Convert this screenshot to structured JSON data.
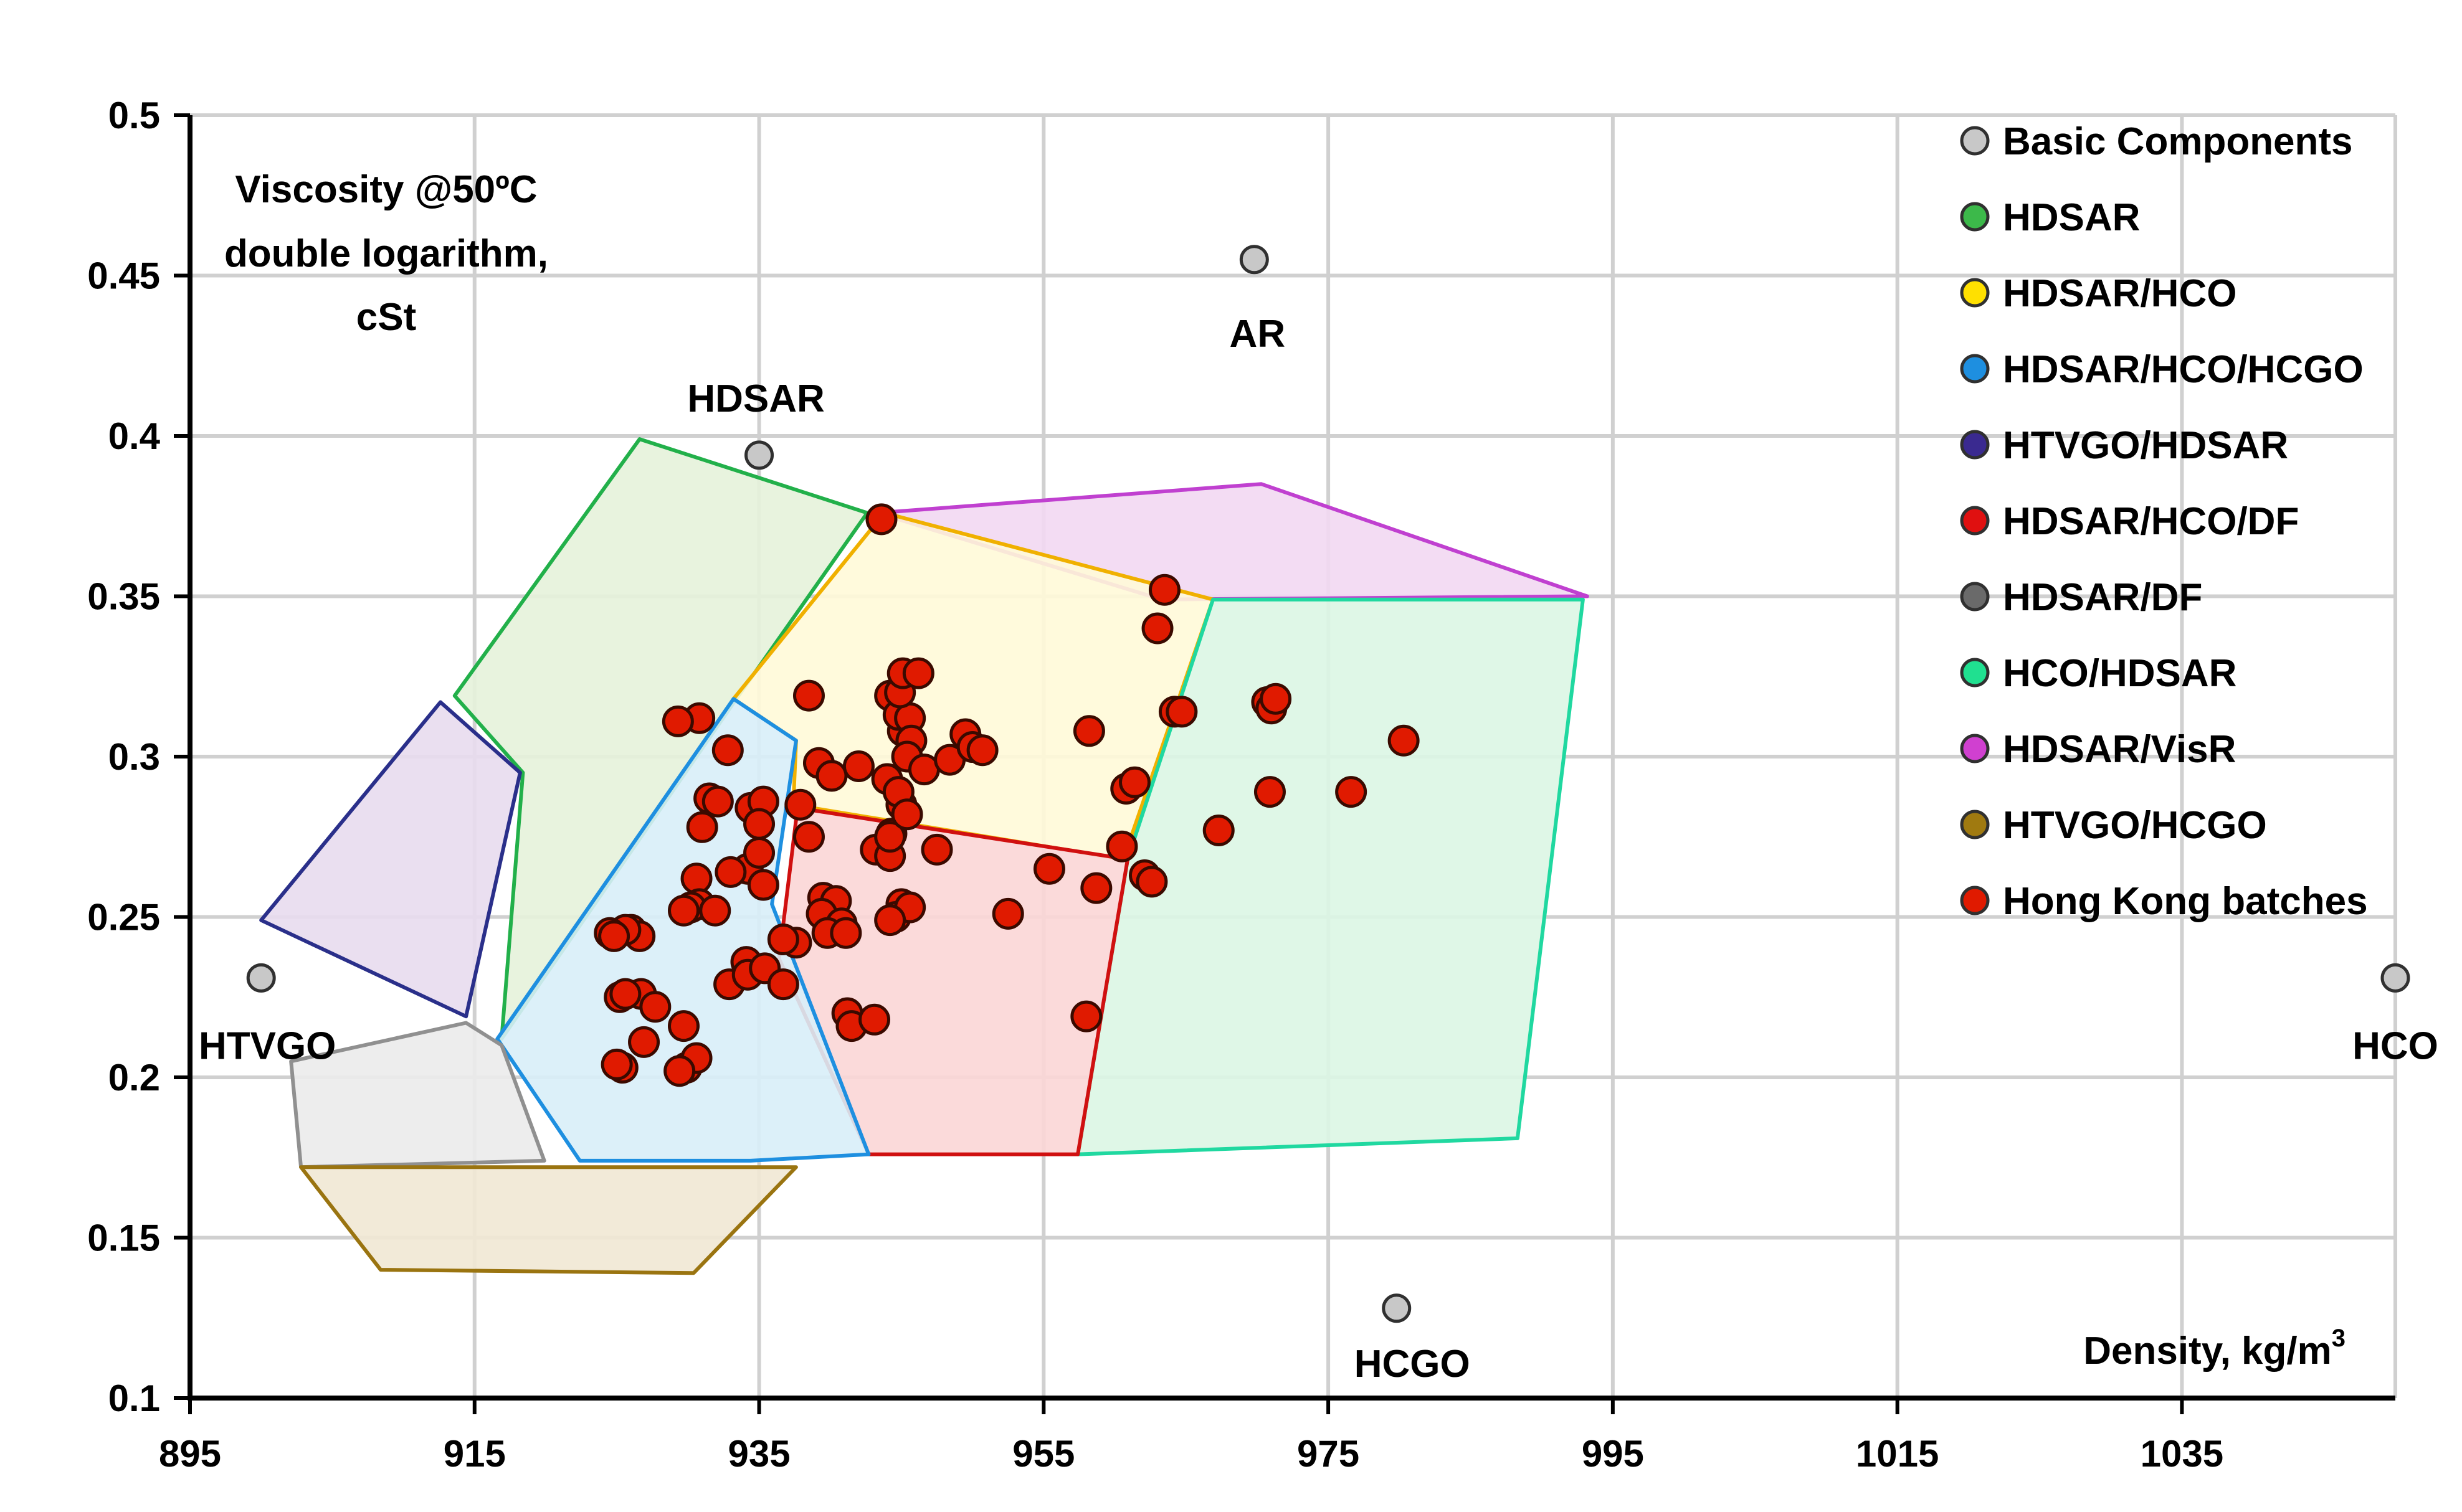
{
  "chart_data": {
    "type": "scatter",
    "title": "",
    "ylabel": "Viscosity @50ºC double logarithm, cSt",
    "ylabel_lines": [
      "Viscosity @50ºC",
      "double logarithm,",
      "cSt"
    ],
    "xlabel": "Density, kg/m",
    "xlabel_sup": "3",
    "xlim": [
      895,
      1050
    ],
    "ylim": [
      0.1,
      0.5
    ],
    "xticks": [
      895,
      915,
      935,
      955,
      975,
      995,
      1015,
      1035
    ],
    "yticks": [
      0.1,
      0.15,
      0.2,
      0.25,
      0.3,
      0.35,
      0.4,
      0.45,
      0.5
    ],
    "ytick_labels": [
      "0.1",
      "0.15",
      "0.2",
      "0.25",
      "0.3",
      "0.35",
      "0.4",
      "0.45",
      "0.5"
    ],
    "grid": true,
    "legend_position": "top-right",
    "colors": {
      "basic": "#c8c8c8",
      "HDSAR": "#22b04a",
      "HDSAR/HCO": "#ffd500",
      "HDSAR/HCO/HCGO": "#1e8fe0",
      "HTVGO/HDSAR": "#2a2f8a",
      "HDSAR/HCO/DF": "#e01010",
      "HDSAR/DF": "#707070",
      "HCO/HDSAR": "#20d8a0",
      "HDSAR/VisR": "#c040d0",
      "HTVGO/HCGO": "#9a7410",
      "Hong Kong batches": "#e01a00"
    },
    "legend": [
      {
        "label": "Basic Components",
        "color": "#c8c8c8"
      },
      {
        "label": "HDSAR",
        "color": "#3cb94a"
      },
      {
        "label": "HDSAR/HCO",
        "color": "#ffe000"
      },
      {
        "label": "HDSAR/HCO/HCGO",
        "color": "#1e8fe0"
      },
      {
        "label": "HTVGO/HDSAR",
        "color": "#3a2a90"
      },
      {
        "label": "HDSAR/HCO/DF",
        "color": "#e01010"
      },
      {
        "label": "HDSAR/DF",
        "color": "#6a6a6a"
      },
      {
        "label": "HCO/HDSAR",
        "color": "#20e090"
      },
      {
        "label": "HDSAR/VisR",
        "color": "#d040d0"
      },
      {
        "label": "HTVGO/HCGO",
        "color": "#a07a10"
      },
      {
        "label": "Hong Kong batches",
        "color": "#e01a00"
      }
    ],
    "basic_components": [
      {
        "name": "HDSAR",
        "x": 935,
        "y": 0.394
      },
      {
        "name": "AR",
        "x": 969.8,
        "y": 0.455
      },
      {
        "name": "HTVGO",
        "x": 900,
        "y": 0.231
      },
      {
        "name": "HCO",
        "x": 1050,
        "y": 0.231
      },
      {
        "name": "HCGO",
        "x": 979.8,
        "y": 0.128
      }
    ],
    "regions": [
      {
        "name": "HDSAR",
        "stroke": "#22b04a",
        "fill": "#e6f2da",
        "points": [
          [
            913.6,
            0.319
          ],
          [
            926.6,
            0.399
          ],
          [
            942.6,
            0.376
          ],
          [
            933.4,
            0.318
          ],
          [
            916.9,
            0.212
          ],
          [
            918.4,
            0.295
          ]
        ]
      },
      {
        "name": "HTVGO/HDSAR",
        "stroke": "#2a2f8a",
        "fill": "#e8dcee",
        "points": [
          [
            900,
            0.249
          ],
          [
            912.6,
            0.317
          ],
          [
            918.2,
            0.295
          ],
          [
            914.4,
            0.219
          ]
        ]
      },
      {
        "name": "HDSAR/VisR",
        "stroke": "#c040d0",
        "fill": "#f2d8f2",
        "points": [
          [
            943.3,
            0.376
          ],
          [
            970.3,
            0.385
          ],
          [
            993.2,
            0.35
          ],
          [
            963.3,
            0.349
          ]
        ]
      },
      {
        "name": "HDSAR/HCO",
        "stroke": "#f0b000",
        "fill": "#fffad8",
        "points": [
          [
            943.8,
            0.376
          ],
          [
            966.9,
            0.349
          ],
          [
            960.6,
            0.268
          ],
          [
            937.4,
            0.285
          ],
          [
            937.6,
            0.305
          ],
          [
            933.2,
            0.318
          ]
        ]
      },
      {
        "name": "HCO/HDSAR",
        "stroke": "#20d8a0",
        "fill": "#dcf6e4",
        "points": [
          [
            966.9,
            0.349
          ],
          [
            992.9,
            0.349
          ],
          [
            988.3,
            0.181
          ],
          [
            957.4,
            0.176
          ],
          [
            960.9,
            0.268
          ]
        ]
      },
      {
        "name": "HDSAR/HCO/DF",
        "stroke": "#d01010",
        "fill": "#fbd6d6",
        "points": [
          [
            937.7,
            0.284
          ],
          [
            960.9,
            0.268
          ],
          [
            957.4,
            0.176
          ],
          [
            942.7,
            0.176
          ],
          [
            936.4,
            0.237
          ]
        ]
      },
      {
        "name": "HDSAR/HCO/HCGO",
        "stroke": "#1e8fe0",
        "fill": "#d8eef8",
        "points": [
          [
            933.2,
            0.318
          ],
          [
            937.6,
            0.305
          ],
          [
            935.9,
            0.254
          ],
          [
            942.7,
            0.176
          ],
          [
            934.4,
            0.174
          ],
          [
            922.4,
            0.174
          ],
          [
            916.6,
            0.212
          ]
        ]
      },
      {
        "name": "HDSAR/DF",
        "stroke": "#909090",
        "fill": "#ebebeb",
        "points": [
          [
            902.1,
            0.205
          ],
          [
            914.4,
            0.217
          ],
          [
            916.9,
            0.21
          ],
          [
            919.9,
            0.174
          ],
          [
            902.8,
            0.172
          ]
        ]
      },
      {
        "name": "HTVGO/HCGO",
        "stroke": "#9a7410",
        "fill": "#f1e8d4",
        "points": [
          [
            902.8,
            0.172
          ],
          [
            937.6,
            0.172
          ],
          [
            930.4,
            0.139
          ],
          [
            908.4,
            0.14
          ]
        ]
      }
    ],
    "series": [
      {
        "name": "Hong Kong batches",
        "points": [
          [
            930.8,
            0.312
          ],
          [
            929.3,
            0.311
          ],
          [
            932.8,
            0.302
          ],
          [
            931.5,
            0.287
          ],
          [
            932.1,
            0.286
          ],
          [
            934.4,
            0.284
          ],
          [
            935.3,
            0.286
          ],
          [
            935.0,
            0.279
          ],
          [
            931.0,
            0.278
          ],
          [
            934.2,
            0.265
          ],
          [
            935.3,
            0.26
          ],
          [
            933.0,
            0.264
          ],
          [
            935.0,
            0.27
          ],
          [
            930.6,
            0.262
          ],
          [
            930.8,
            0.254
          ],
          [
            930.2,
            0.253
          ],
          [
            931.9,
            0.252
          ],
          [
            929.7,
            0.252
          ],
          [
            926.0,
            0.246
          ],
          [
            926.6,
            0.244
          ],
          [
            925.6,
            0.246
          ],
          [
            924.5,
            0.245
          ],
          [
            924.8,
            0.244
          ],
          [
            925.2,
            0.225
          ],
          [
            926.7,
            0.226
          ],
          [
            927.7,
            0.222
          ],
          [
            925.6,
            0.226
          ],
          [
            925.4,
            0.203
          ],
          [
            925.0,
            0.204
          ],
          [
            926.9,
            0.211
          ],
          [
            929.7,
            0.216
          ],
          [
            929.9,
            0.203
          ],
          [
            930.6,
            0.206
          ],
          [
            929.4,
            0.202
          ],
          [
            932.9,
            0.229
          ],
          [
            934.1,
            0.236
          ],
          [
            934.2,
            0.232
          ],
          [
            935.4,
            0.234
          ],
          [
            936.7,
            0.229
          ],
          [
            937.6,
            0.242
          ],
          [
            936.7,
            0.243
          ],
          [
            938.5,
            0.275
          ],
          [
            937.9,
            0.285
          ],
          [
            938.5,
            0.319
          ],
          [
            939.2,
            0.298
          ],
          [
            940.1,
            0.294
          ],
          [
            942.0,
            0.297
          ],
          [
            939.5,
            0.256
          ],
          [
            940.4,
            0.255
          ],
          [
            939.4,
            0.251
          ],
          [
            940.8,
            0.248
          ],
          [
            939.8,
            0.245
          ],
          [
            941.1,
            0.245
          ],
          [
            941.2,
            0.22
          ],
          [
            941.5,
            0.216
          ],
          [
            943.1,
            0.218
          ],
          [
            943.2,
            0.271
          ],
          [
            944.2,
            0.269
          ],
          [
            944.3,
            0.276
          ],
          [
            944.2,
            0.275
          ],
          [
            945.0,
            0.254
          ],
          [
            944.6,
            0.25
          ],
          [
            945.6,
            0.253
          ],
          [
            944.2,
            0.249
          ],
          [
            944.0,
            0.293
          ],
          [
            945.0,
            0.285
          ],
          [
            944.8,
            0.289
          ],
          [
            945.4,
            0.282
          ],
          [
            944.2,
            0.319
          ],
          [
            945.1,
            0.308
          ],
          [
            944.8,
            0.313
          ],
          [
            945.6,
            0.312
          ],
          [
            945.7,
            0.305
          ],
          [
            944.9,
            0.32
          ],
          [
            945.1,
            0.326
          ],
          [
            946.2,
            0.326
          ],
          [
            945.4,
            0.3
          ],
          [
            946.6,
            0.296
          ],
          [
            947.5,
            0.271
          ],
          [
            948.4,
            0.299
          ],
          [
            949.5,
            0.307
          ],
          [
            950.0,
            0.303
          ],
          [
            950.7,
            0.302
          ],
          [
            952.5,
            0.251
          ],
          [
            955.4,
            0.265
          ],
          [
            958.2,
            0.308
          ],
          [
            958.7,
            0.259
          ],
          [
            958.0,
            0.219
          ],
          [
            960.5,
            0.272
          ],
          [
            960.8,
            0.29
          ],
          [
            961.4,
            0.292
          ],
          [
            962.1,
            0.263
          ],
          [
            962.6,
            0.261
          ],
          [
            963.0,
            0.34
          ],
          [
            963.5,
            0.352
          ],
          [
            964.2,
            0.314
          ],
          [
            964.7,
            0.314
          ],
          [
            967.3,
            0.277
          ],
          [
            970.7,
            0.317
          ],
          [
            970.9,
            0.289
          ],
          [
            971.0,
            0.315
          ],
          [
            971.3,
            0.318
          ],
          [
            976.6,
            0.289
          ],
          [
            980.3,
            0.305
          ],
          [
            943.6,
            0.374
          ]
        ]
      }
    ]
  }
}
